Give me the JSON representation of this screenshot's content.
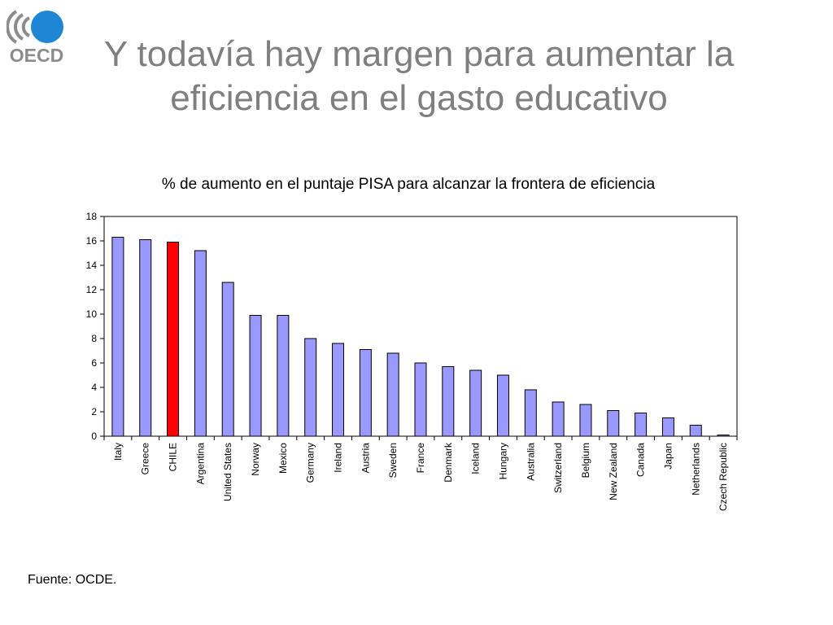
{
  "slide": {
    "title_line1": "Y todavía hay margen para aumentar la",
    "title_line2": "eficiencia en el gasto educativo",
    "source": "Fuente: OCDE.",
    "logo_text": "OECD"
  },
  "colors": {
    "title": "#7f7f7f",
    "bar": "#9999ff",
    "highlight_bar": "#ff0000",
    "logo_blue": "#1d87d6",
    "logo_gray": "#8c8c8c"
  },
  "chart_data": {
    "type": "bar",
    "title": "% de aumento en el puntaje PISA para alcanzar la frontera de eficiencia",
    "xlabel": "",
    "ylabel": "",
    "ylim": [
      0,
      18
    ],
    "yticks": [
      0,
      2,
      4,
      6,
      8,
      10,
      12,
      14,
      16,
      18
    ],
    "grid": false,
    "highlight": "CHILE",
    "categories": [
      "Italy",
      "Greece",
      "CHILE",
      "Argentina",
      "United States",
      "Norway",
      "Mexico",
      "Germany",
      "Ireland",
      "Austria",
      "Sweden",
      "France",
      "Denmark",
      "Iceland",
      "Hungary",
      "Australia",
      "Switzerland",
      "Belgium",
      "New Zealand",
      "Canada",
      "Japan",
      "Netherlands",
      "Czech Republic"
    ],
    "values": [
      16.3,
      16.1,
      15.9,
      15.2,
      12.6,
      9.9,
      9.9,
      8.0,
      7.6,
      7.1,
      6.8,
      6.0,
      5.7,
      5.4,
      5.0,
      3.8,
      2.8,
      2.6,
      2.1,
      1.9,
      1.5,
      0.9,
      0.1
    ]
  }
}
